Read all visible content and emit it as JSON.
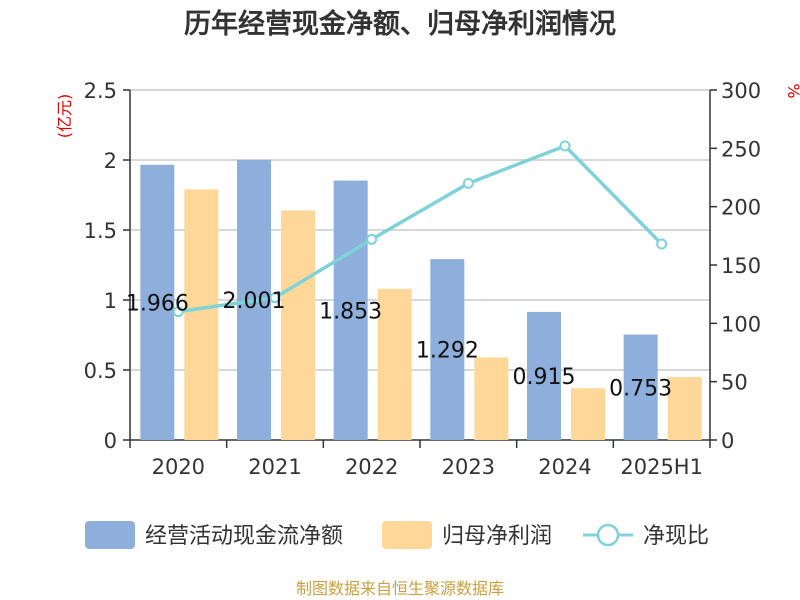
{
  "chart_data": {
    "type": "bar",
    "title": "历年经营现金净额、归母净利润情况",
    "categories": [
      "2020",
      "2021",
      "2022",
      "2023",
      "2024",
      "2025H1"
    ],
    "series": [
      {
        "name": "经营活动现金流净额",
        "type": "bar",
        "axis": "left",
        "color": "#8eaedc",
        "values": [
          1.966,
          2.001,
          1.853,
          1.292,
          0.915,
          0.753
        ],
        "labels": [
          "1.966",
          "2.001",
          "1.853",
          "1.292",
          "0.915",
          "0.753"
        ]
      },
      {
        "name": "归母净利润",
        "type": "bar",
        "axis": "left",
        "color": "#ffd799",
        "values": [
          1.79,
          1.64,
          1.08,
          0.59,
          0.37,
          0.45
        ]
      },
      {
        "name": "净现比",
        "type": "line",
        "axis": "right",
        "color": "#7fd3d8",
        "values": [
          110,
          122,
          172,
          220,
          252,
          168
        ]
      }
    ],
    "y_left": {
      "unit": "(亿元)",
      "min": 0,
      "max": 2.5,
      "ticks": [
        "0",
        "0.5",
        "1",
        "1.5",
        "2",
        "2.5"
      ]
    },
    "y_right": {
      "unit": "%",
      "min": 0,
      "max": 300,
      "ticks": [
        "0",
        "50",
        "100",
        "150",
        "200",
        "250",
        "300"
      ]
    },
    "grid": true,
    "legend_position": "bottom"
  },
  "source": "制图数据来自恒生聚源数据库"
}
